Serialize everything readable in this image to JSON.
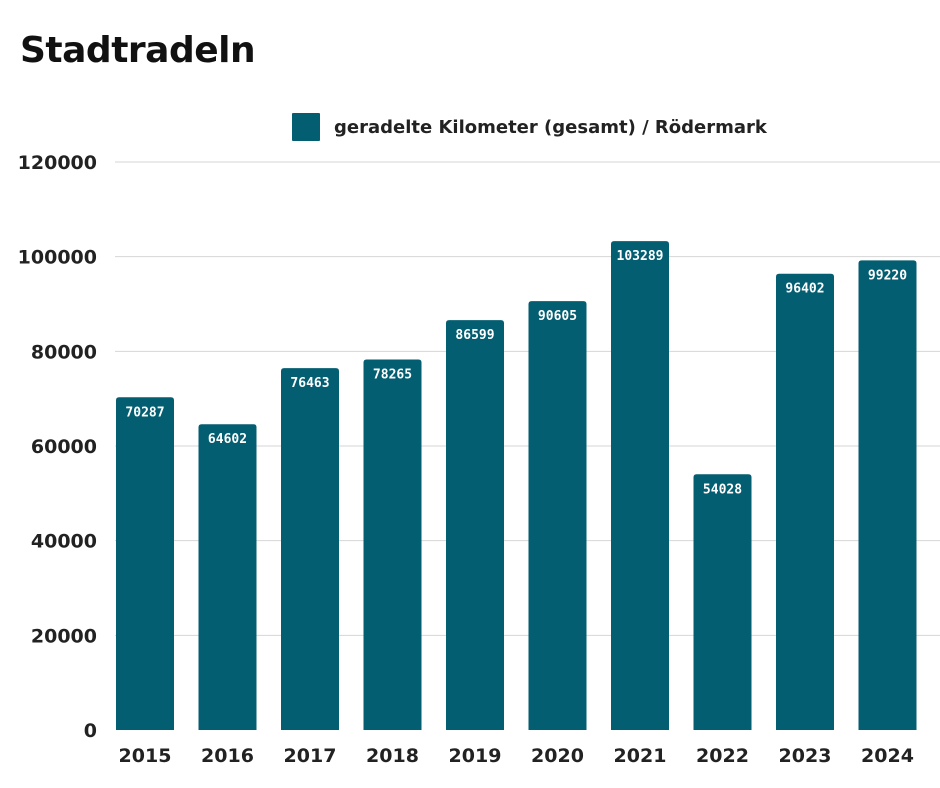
{
  "chart_data": {
    "type": "bar",
    "title": "Stadtradeln",
    "xlabel": "",
    "ylabel": "",
    "categories": [
      "2015",
      "2016",
      "2017",
      "2018",
      "2019",
      "2020",
      "2021",
      "2022",
      "2023",
      "2024"
    ],
    "series": [
      {
        "name": "geradelte Kilometer (gesamt) / Rödermark",
        "values": [
          70287,
          64602,
          76463,
          78265,
          86599,
          90605,
          103289,
          54028,
          96402,
          99220
        ],
        "color": "#045e72"
      }
    ],
    "ylim": [
      0,
      120000
    ],
    "yticks": [
      0,
      20000,
      40000,
      60000,
      80000,
      100000,
      120000
    ],
    "grid": true,
    "legend_position": "top-center",
    "data_labels": true
  }
}
